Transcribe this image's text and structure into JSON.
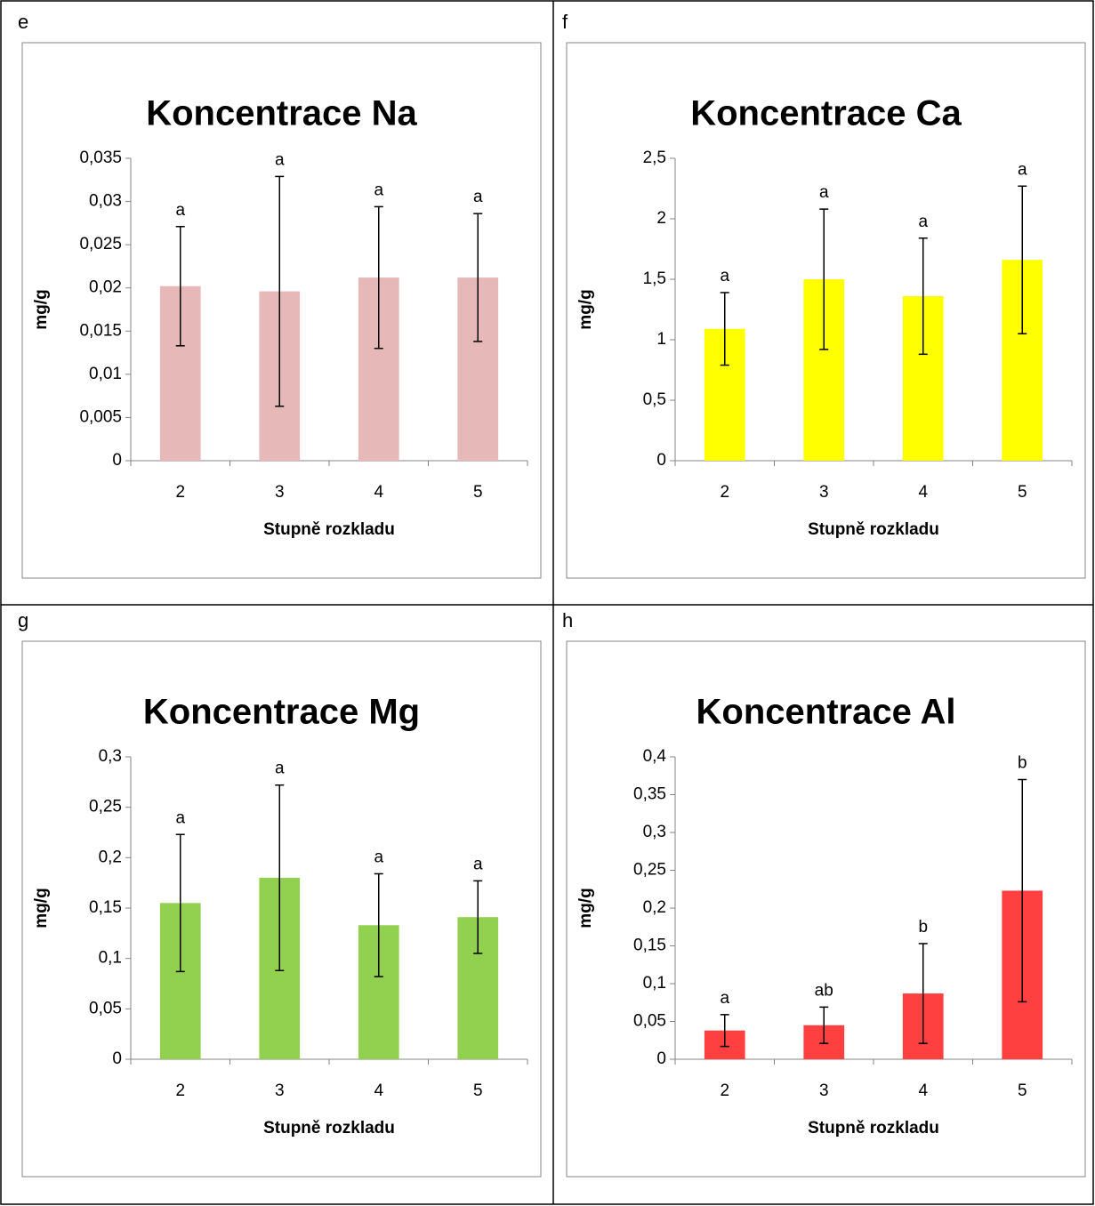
{
  "chart_data": [
    {
      "type": "bar",
      "label": "e",
      "title": "Koncentrace Na",
      "xlabel": "Stupně rozkladu",
      "ylabel": "mg/g",
      "categories": [
        "2",
        "3",
        "4",
        "5"
      ],
      "values": [
        0.0202,
        0.0196,
        0.0212,
        0.0212
      ],
      "errors": [
        0.0069,
        0.0133,
        0.0082,
        0.0074
      ],
      "annotations": [
        "a",
        "a",
        "a",
        "a"
      ],
      "color": "#e6b9b8",
      "ylim": [
        0,
        0.035
      ],
      "yticks": [
        0,
        {
          "value": 0.005,
          "label": "0,005"
        },
        {
          "value": 0.01,
          "label": "0,01"
        },
        {
          "value": 0.015,
          "label": "0,015"
        },
        {
          "value": 0.02,
          "label": "0,02"
        },
        {
          "value": 0.025,
          "label": "0,025"
        },
        {
          "value": 0.03,
          "label": "0,03"
        },
        {
          "value": 0.035,
          "label": "0,035"
        }
      ]
    },
    {
      "type": "bar",
      "label": "f",
      "title": "Koncentrace Ca",
      "xlabel": "Stupně rozkladu",
      "ylabel": "mg/g",
      "categories": [
        "2",
        "3",
        "4",
        "5"
      ],
      "values": [
        1.09,
        1.5,
        1.36,
        1.66
      ],
      "errors": [
        0.3,
        0.58,
        0.48,
        0.61
      ],
      "annotations": [
        "a",
        "a",
        "a",
        "a"
      ],
      "color": "#ffff00",
      "ylim": [
        0,
        2.5
      ],
      "yticks": [
        0,
        {
          "value": 0.5,
          "label": "0,5"
        },
        1,
        {
          "value": 1.5,
          "label": "1,5"
        },
        2,
        {
          "value": 2.5,
          "label": "2,5"
        }
      ]
    },
    {
      "type": "bar",
      "label": "g",
      "title": "Koncentrace Mg",
      "xlabel": "Stupně rozkladu",
      "ylabel": "mg/g",
      "categories": [
        "2",
        "3",
        "4",
        "5"
      ],
      "values": [
        0.155,
        0.18,
        0.133,
        0.141
      ],
      "errors": [
        0.068,
        0.092,
        0.051,
        0.036
      ],
      "annotations": [
        "a",
        "a",
        "a",
        "a"
      ],
      "color": "#92d050",
      "ylim": [
        0,
        0.3
      ],
      "yticks": [
        0,
        {
          "value": 0.05,
          "label": "0,05"
        },
        {
          "value": 0.1,
          "label": "0,1"
        },
        {
          "value": 0.15,
          "label": "0,15"
        },
        {
          "value": 0.2,
          "label": "0,2"
        },
        {
          "value": 0.25,
          "label": "0,25"
        },
        {
          "value": 0.3,
          "label": "0,3"
        }
      ]
    },
    {
      "type": "bar",
      "label": "h",
      "title": "Koncentrace Al",
      "xlabel": "Stupně rozkladu",
      "ylabel": "mg/g",
      "categories": [
        "2",
        "3",
        "4",
        "5"
      ],
      "values": [
        0.038,
        0.045,
        0.087,
        0.223
      ],
      "errors": [
        0.021,
        0.024,
        0.066,
        0.147
      ],
      "annotations": [
        "a",
        "ab",
        "b",
        "b"
      ],
      "color": "#ff4040",
      "ylim": [
        0,
        0.4
      ],
      "yticks": [
        0,
        {
          "value": 0.05,
          "label": "0,05"
        },
        {
          "value": 0.1,
          "label": "0,1"
        },
        {
          "value": 0.15,
          "label": "0,15"
        },
        {
          "value": 0.2,
          "label": "0,2"
        },
        {
          "value": 0.25,
          "label": "0,25"
        },
        {
          "value": 0.3,
          "label": "0,3"
        },
        {
          "value": 0.35,
          "label": "0,35"
        },
        {
          "value": 0.4,
          "label": "0,4"
        }
      ]
    }
  ]
}
